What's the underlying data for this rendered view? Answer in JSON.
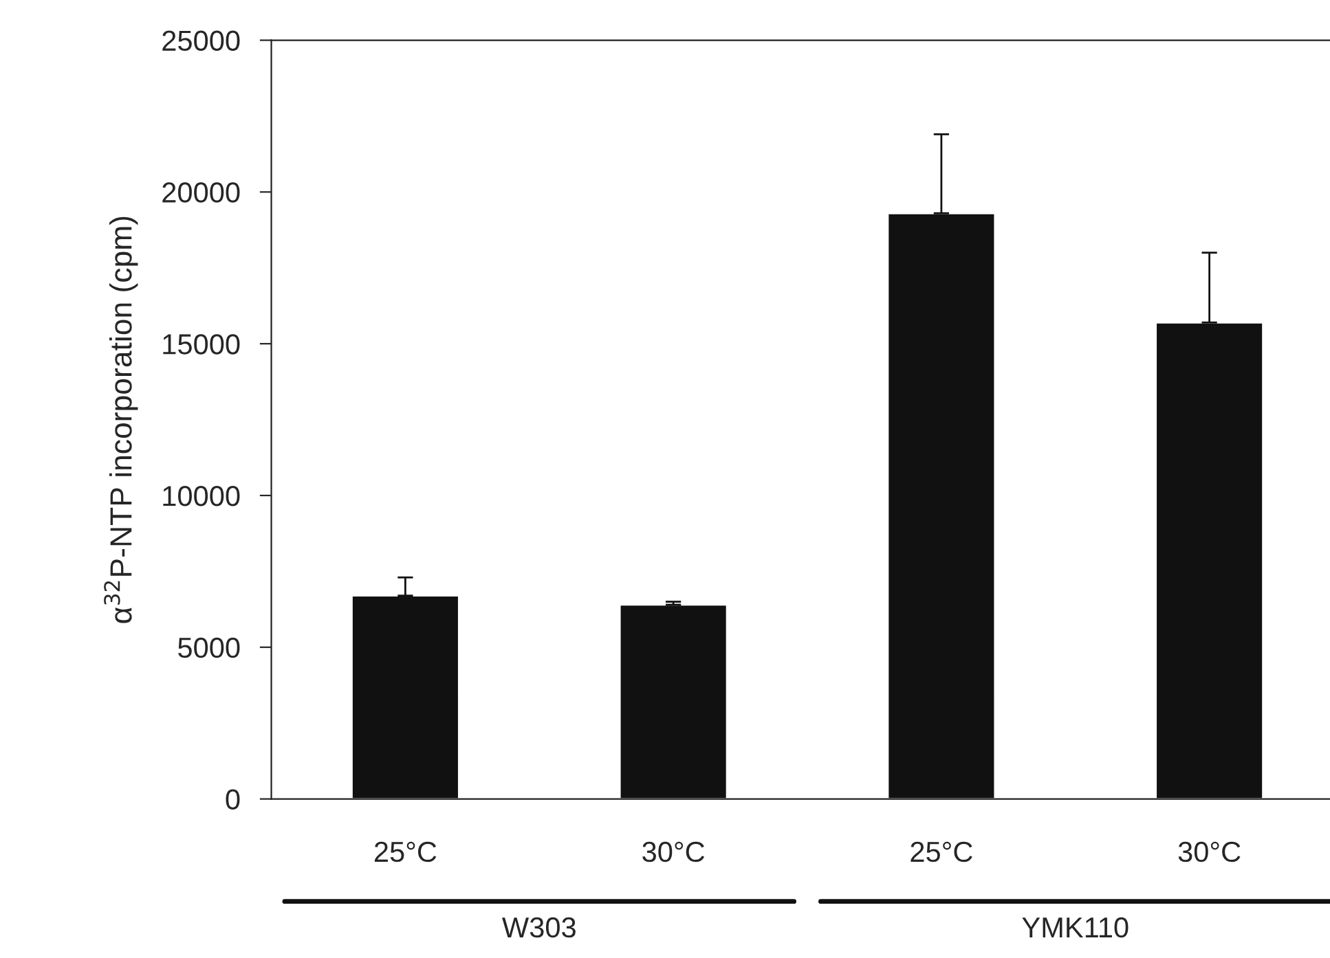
{
  "chart_data": {
    "type": "bar",
    "ylabel": "α$^{32}$P-NTP incorporation (cpm)",
    "categories": [
      "25°C",
      "30°C",
      "25°C",
      "30°C"
    ],
    "values": [
      6700,
      6400,
      19300,
      15700
    ],
    "errors": [
      [
        6700,
        7300
      ],
      [
        6400,
        6500
      ],
      [
        19300,
        21900
      ],
      [
        15700,
        18000
      ]
    ],
    "color": "#111111",
    "ylim": [
      0,
      25000
    ],
    "yticks": [
      0,
      5000,
      10000,
      15000,
      20000,
      25000
    ],
    "grid": false,
    "annotations": [
      "W303",
      "YMK110"
    ]
  }
}
